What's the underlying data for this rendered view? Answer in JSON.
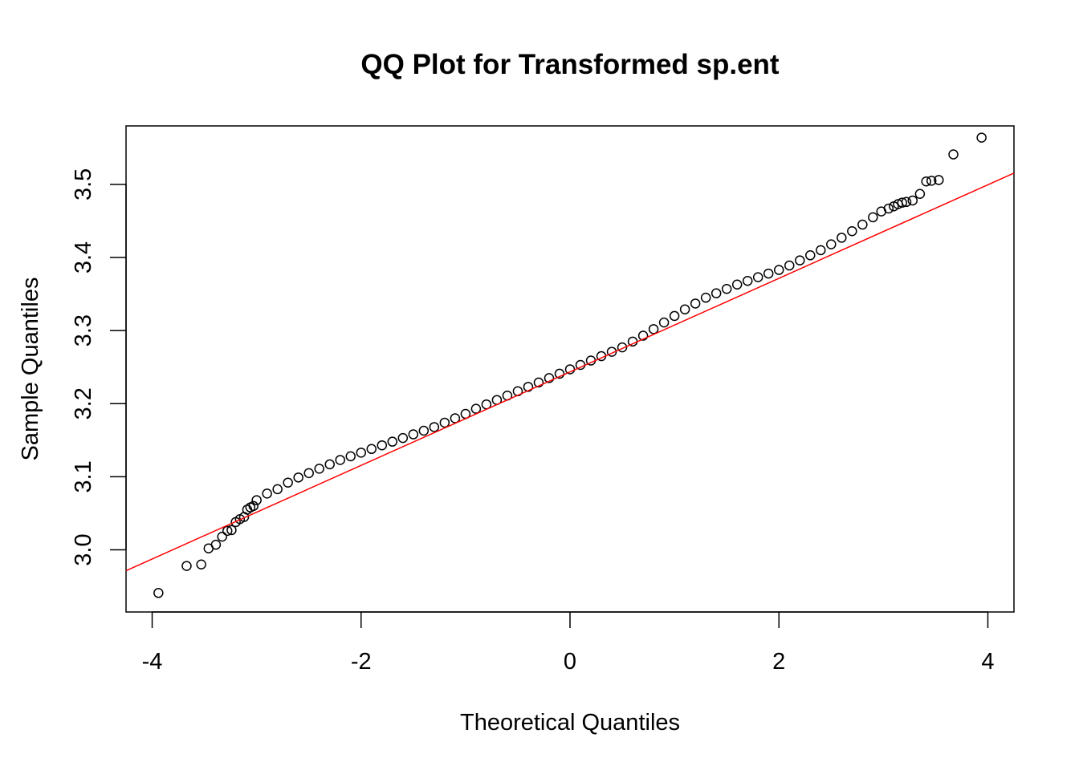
{
  "chart_data": {
    "type": "scatter",
    "title": "QQ Plot for Transformed sp.ent",
    "xlabel": "Theoretical Quantiles",
    "ylabel": "Sample Quantiles",
    "xlim": [
      -4.25,
      4.25
    ],
    "ylim": [
      2.915,
      3.58
    ],
    "x_ticks": [
      -4,
      -2,
      0,
      2,
      4
    ],
    "x_tick_labels": [
      "-4",
      "-2",
      "0",
      "2",
      "4"
    ],
    "y_ticks": [
      3.0,
      3.1,
      3.2,
      3.3,
      3.4,
      3.5
    ],
    "y_tick_labels": [
      "3.0",
      "3.1",
      "3.2",
      "3.3",
      "3.4",
      "3.5"
    ],
    "grid": false,
    "legend": "none",
    "series": [
      {
        "marker": "open-circle",
        "color": "#000000",
        "x": [
          -3.94,
          -3.67,
          -3.53,
          -3.46,
          -3.39,
          -3.33,
          -3.28,
          -3.24,
          -3.2,
          -3.16,
          -3.12,
          -3.09,
          -3.06,
          -3.03,
          -3.0,
          -2.9,
          -2.8,
          -2.7,
          -2.6,
          -2.5,
          -2.4,
          -2.3,
          -2.2,
          -2.1,
          -2.0,
          -1.9,
          -1.8,
          -1.7,
          -1.6,
          -1.5,
          -1.4,
          -1.3,
          -1.2,
          -1.1,
          -1.0,
          -0.9,
          -0.8,
          -0.7,
          -0.6,
          -0.5,
          -0.4,
          -0.3,
          -0.2,
          -0.1,
          0.0,
          0.1,
          0.2,
          0.3,
          0.4,
          0.5,
          0.6,
          0.7,
          0.8,
          0.9,
          1.0,
          1.1,
          1.2,
          1.3,
          1.4,
          1.5,
          1.6,
          1.7,
          1.8,
          1.9,
          2.0,
          2.1,
          2.2,
          2.3,
          2.4,
          2.5,
          2.6,
          2.7,
          2.8,
          2.9,
          2.98,
          3.05,
          3.1,
          3.14,
          3.18,
          3.22,
          3.28,
          3.35,
          3.41,
          3.46,
          3.53,
          3.67,
          3.94
        ],
        "y": [
          2.941,
          2.978,
          2.98,
          3.002,
          3.007,
          3.018,
          3.026,
          3.027,
          3.038,
          3.042,
          3.045,
          3.055,
          3.058,
          3.06,
          3.068,
          3.077,
          3.083,
          3.092,
          3.099,
          3.105,
          3.111,
          3.117,
          3.123,
          3.128,
          3.133,
          3.138,
          3.143,
          3.148,
          3.153,
          3.158,
          3.163,
          3.168,
          3.174,
          3.18,
          3.186,
          3.193,
          3.199,
          3.205,
          3.211,
          3.217,
          3.223,
          3.229,
          3.235,
          3.241,
          3.247,
          3.253,
          3.259,
          3.265,
          3.271,
          3.277,
          3.285,
          3.293,
          3.302,
          3.311,
          3.32,
          3.329,
          3.337,
          3.345,
          3.351,
          3.357,
          3.363,
          3.368,
          3.373,
          3.378,
          3.383,
          3.389,
          3.396,
          3.403,
          3.41,
          3.418,
          3.427,
          3.436,
          3.445,
          3.455,
          3.463,
          3.467,
          3.47,
          3.473,
          3.475,
          3.476,
          3.478,
          3.487,
          3.504,
          3.505,
          3.506,
          3.541,
          3.564
        ]
      },
      {
        "marker": "reference-line",
        "color": "#ff0000",
        "x": [
          -4.25,
          4.25
        ],
        "y": [
          2.9715,
          3.5155
        ]
      }
    ]
  }
}
